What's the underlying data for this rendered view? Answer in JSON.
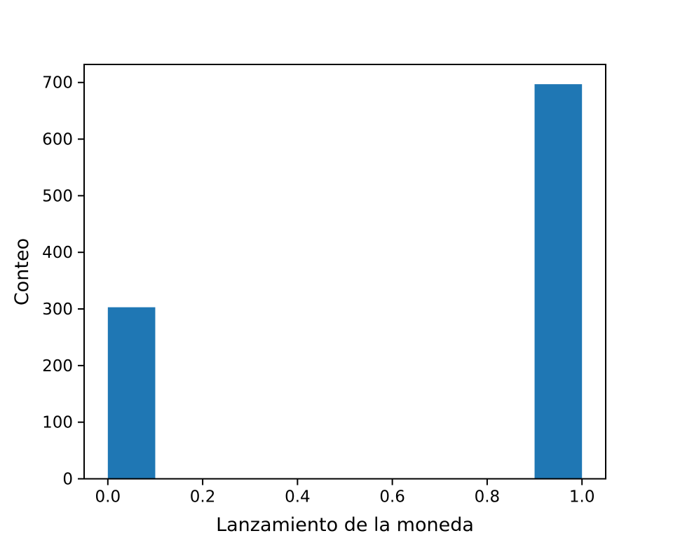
{
  "chart_data": {
    "type": "bar",
    "subtype": "histogram",
    "title": "",
    "xlabel": "Lanzamiento de la moneda",
    "ylabel": "Conteo",
    "bin_edges": [
      0.0,
      0.1,
      0.2,
      0.3,
      0.4,
      0.5,
      0.6,
      0.7,
      0.8,
      0.9,
      1.0
    ],
    "counts": [
      303,
      0,
      0,
      0,
      0,
      0,
      0,
      0,
      0,
      697
    ],
    "categories_note": "coin toss outcomes: 0 occurred 303 times, 1 occurred 697 times",
    "xlim": [
      -0.05,
      1.05
    ],
    "ylim": [
      0,
      731.85
    ],
    "x_ticks": [
      0.0,
      0.2,
      0.4,
      0.6,
      0.8,
      1.0
    ],
    "x_tick_labels": [
      "0.0",
      "0.2",
      "0.4",
      "0.6",
      "0.8",
      "1.0"
    ],
    "y_ticks": [
      0,
      100,
      200,
      300,
      400,
      500,
      600,
      700
    ],
    "y_tick_labels": [
      "0",
      "100",
      "200",
      "300",
      "400",
      "500",
      "600",
      "700"
    ],
    "bar_color": "#1f77b4",
    "axis_color": "#000000",
    "background_color": "#ffffff",
    "grid": false,
    "legend": false
  }
}
